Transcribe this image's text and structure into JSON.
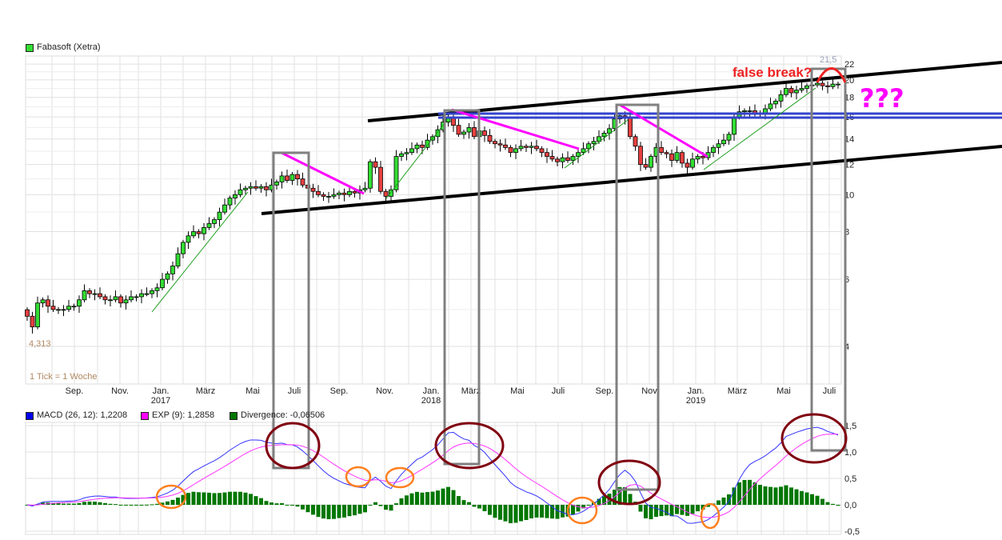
{
  "chart_data": [
    {
      "type": "candlestick",
      "title": "Fabasoft (Xetra)",
      "legend_color": "#33dd33",
      "scale": "log",
      "ylim": [
        4,
        22.5
      ],
      "y_ticks": [
        22,
        20,
        18,
        16,
        14,
        12,
        10,
        8,
        6,
        4
      ],
      "x_ticks": [
        {
          "label": "Sep.",
          "year": ""
        },
        {
          "label": "Nov.",
          "year": ""
        },
        {
          "label": "Jan.",
          "year": "2017"
        },
        {
          "label": "März",
          "year": ""
        },
        {
          "label": "Mai",
          "year": ""
        },
        {
          "label": "Juli",
          "year": ""
        },
        {
          "label": "Sep.",
          "year": ""
        },
        {
          "label": "Nov.",
          "year": ""
        },
        {
          "label": "Jan.",
          "year": "2018"
        },
        {
          "label": "März",
          "year": ""
        },
        {
          "label": "Mai",
          "year": ""
        },
        {
          "label": "Juli",
          "year": ""
        },
        {
          "label": "Sep.",
          "year": ""
        },
        {
          "label": "Nov",
          "year": ""
        },
        {
          "label": "Jan.",
          "year": "2019"
        },
        {
          "label": "März",
          "year": ""
        },
        {
          "label": "Mai",
          "year": ""
        },
        {
          "label": "Juli",
          "year": ""
        }
      ],
      "interval_note": "1 Tick = 1 Woche",
      "low_label": "4,313",
      "high_label": "21,5",
      "weekly_close": [
        4.8,
        4.5,
        5.2,
        5.3,
        5.1,
        5.0,
        5.0,
        5.0,
        5.1,
        5.1,
        5.3,
        5.6,
        5.5,
        5.5,
        5.4,
        5.3,
        5.3,
        5.4,
        5.2,
        5.3,
        5.4,
        5.4,
        5.5,
        5.5,
        5.6,
        5.7,
        6.0,
        6.2,
        6.5,
        7.0,
        7.5,
        7.8,
        8.0,
        7.9,
        8.2,
        8.4,
        8.6,
        9.0,
        9.4,
        9.8,
        10.0,
        10.3,
        10.4,
        10.5,
        10.4,
        10.5,
        10.3,
        10.6,
        10.8,
        11.2,
        10.9,
        11.3,
        11.0,
        10.6,
        10.4,
        10.2,
        10.0,
        9.9,
        9.9,
        10.0,
        10.1,
        10.0,
        10.2,
        10.1,
        10.3,
        10.4,
        12.2,
        11.8,
        10.2,
        9.9,
        10.3,
        12.6,
        12.8,
        12.9,
        13.2,
        13.5,
        13.3,
        13.9,
        14.2,
        14.8,
        15.5,
        16.0,
        15.2,
        14.4,
        14.6,
        15.0,
        14.2,
        14.7,
        14.3,
        13.8,
        13.6,
        13.5,
        13.3,
        12.9,
        13.2,
        13.4,
        13.3,
        13.4,
        13.2,
        12.9,
        12.6,
        12.4,
        12.2,
        12.5,
        12.3,
        12.6,
        12.9,
        13.2,
        13.6,
        13.8,
        14.2,
        14.5,
        14.9,
        15.8,
        16.1,
        15.9,
        14.2,
        13.4,
        12.0,
        11.8,
        12.6,
        13.3,
        12.9,
        12.8,
        12.3,
        12.9,
        12.1,
        11.8,
        12.4,
        12.6,
        12.5,
        12.9,
        13.3,
        13.6,
        13.9,
        14.4,
        16.0,
        16.5,
        16.6,
        16.6,
        16.3,
        16.4,
        16.8,
        17.3,
        17.6,
        18.3,
        19.0,
        18.5,
        18.8,
        19.0,
        19.3,
        19.4,
        19.6,
        19.3,
        19.2,
        19.5,
        19.5
      ],
      "annotations": {
        "false_break": "false break?",
        "question": "???"
      }
    },
    {
      "type": "macd",
      "ylim": [
        -0.5,
        1.6
      ],
      "y_ticks": [
        {
          "v": 1.5,
          "label": "1,5"
        },
        {
          "v": 1.0,
          "label": "1,0"
        },
        {
          "v": 0.5,
          "label": "0,5"
        },
        {
          "v": 0.0,
          "label": "0,0"
        },
        {
          "v": -0.5,
          "label": "-0,5"
        }
      ],
      "legend": [
        {
          "label": "MACD (26, 12): 1,2208",
          "color": "#0000ee"
        },
        {
          "label": "EXP (9): 1,2858",
          "color": "#ff00ff"
        },
        {
          "label": "Divergence: -0,06506",
          "color": "#007700"
        }
      ]
    }
  ]
}
